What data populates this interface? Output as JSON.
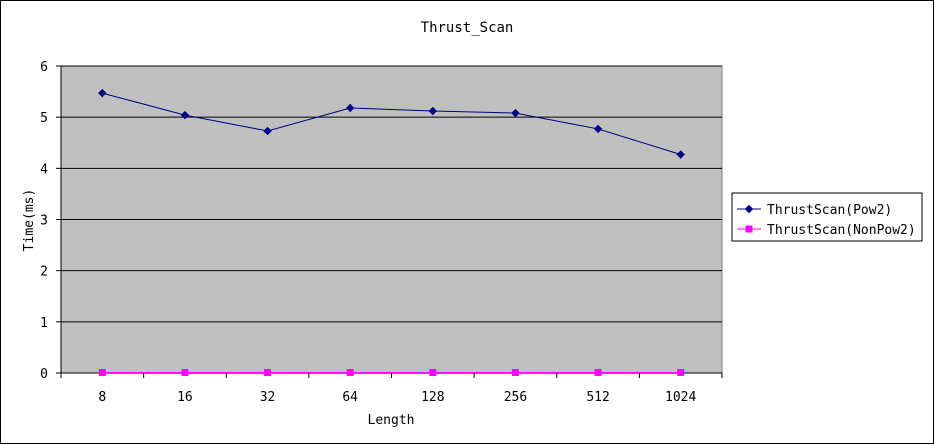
{
  "chart_data": {
    "type": "line",
    "title": "Thrust_Scan",
    "xlabel": "Length",
    "ylabel": "Time(ms)",
    "categories": [
      "8",
      "16",
      "32",
      "64",
      "128",
      "256",
      "512",
      "1024"
    ],
    "ylim": [
      0,
      6
    ],
    "yticks": [
      "0",
      "1",
      "2",
      "3",
      "4",
      "5",
      "6"
    ],
    "grid": true,
    "legend_position": "right",
    "series": [
      {
        "name": "ThrustScan(Pow2)",
        "color": "#000080",
        "marker": "diamond",
        "values": [
          5.47,
          5.04,
          4.73,
          5.18,
          5.12,
          5.08,
          4.77,
          4.27
        ]
      },
      {
        "name": "ThrustScan(NonPow2)",
        "color": "#ff00ff",
        "marker": "square",
        "values": [
          0.01,
          0.01,
          0.01,
          0.01,
          0.01,
          0.01,
          0.01,
          0.01
        ]
      }
    ],
    "colors": {
      "plot_background": "#c0c0c0",
      "gridline": "#000000"
    }
  }
}
